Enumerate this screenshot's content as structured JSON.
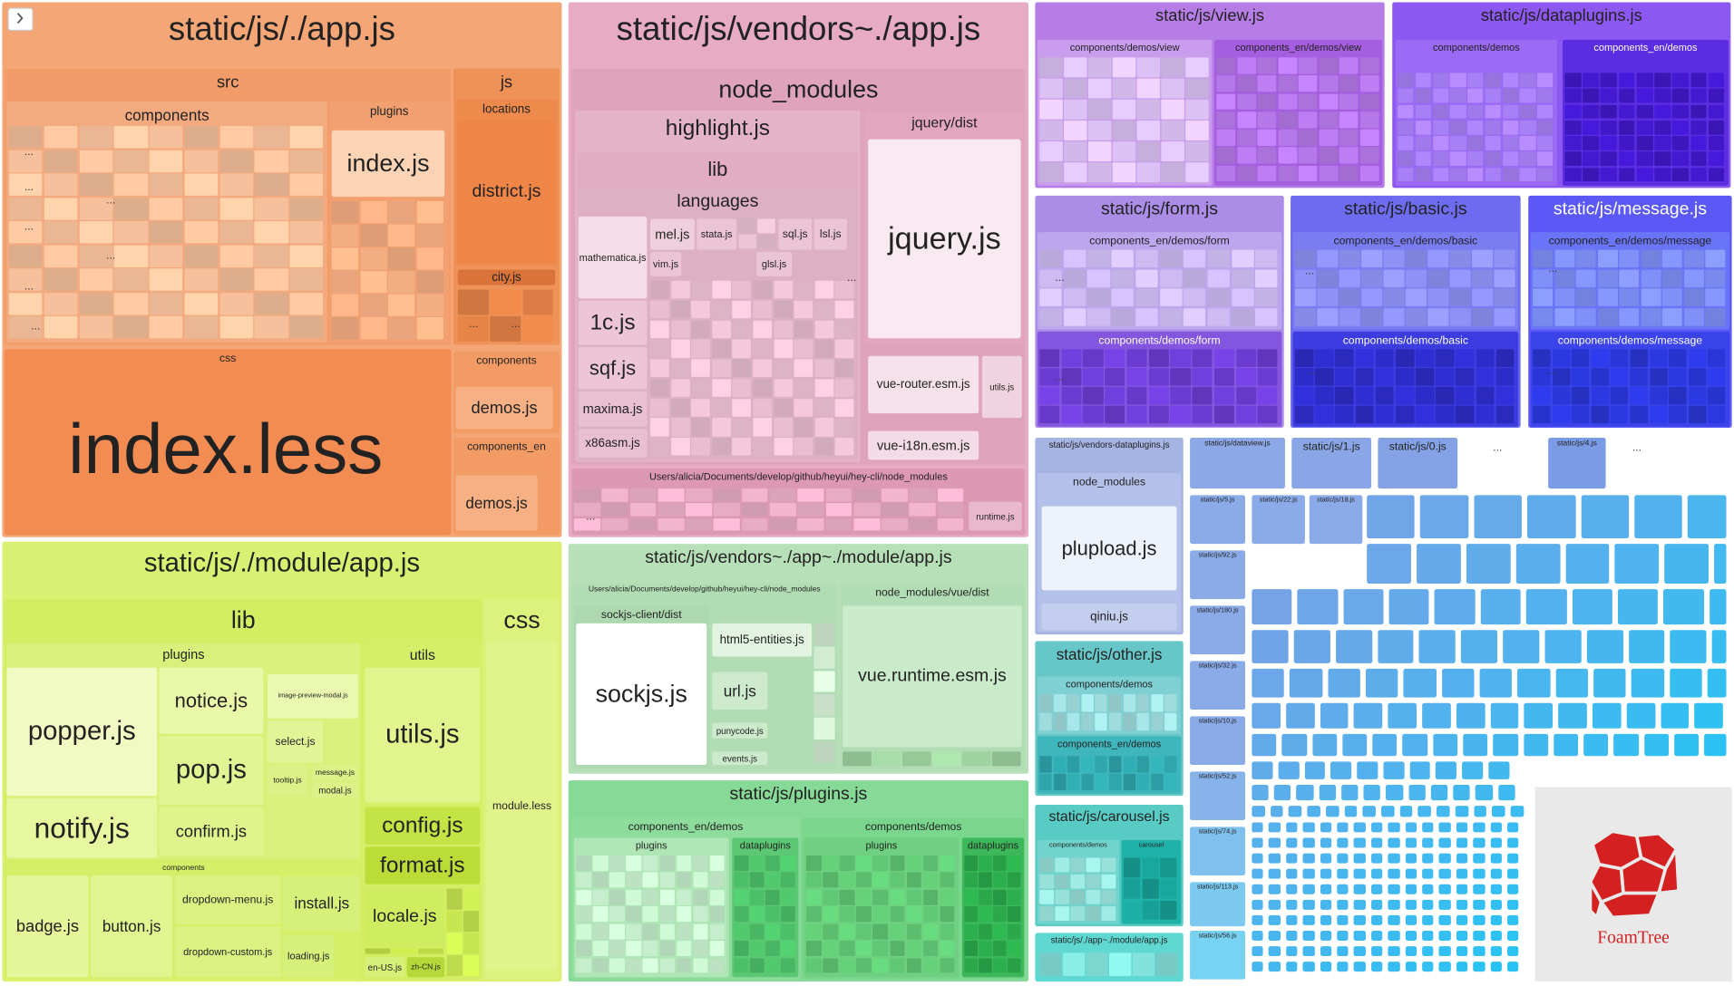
{
  "nodes": [
    {
      "label": "static/js/./app.js"
    },
    {
      "label": "src"
    },
    {
      "label": "components"
    },
    {
      "label": "plugins"
    },
    {
      "label": "index.js"
    },
    {
      "label": "js"
    },
    {
      "label": "locations"
    },
    {
      "label": "district.js"
    },
    {
      "label": "city.js"
    },
    {
      "label": "css"
    },
    {
      "label": "index.less"
    },
    {
      "label": "components"
    },
    {
      "label": "demos.js"
    },
    {
      "label": "components_en"
    },
    {
      "label": "demos.js"
    },
    {
      "label": "static/js/vendors~./app.js"
    },
    {
      "label": "node_modules"
    },
    {
      "label": "highlight.js"
    },
    {
      "label": "lib"
    },
    {
      "label": "languages"
    },
    {
      "label": "mathematica.js"
    },
    {
      "label": "1c.js"
    },
    {
      "label": "sqf.js"
    },
    {
      "label": "maxima.js"
    },
    {
      "label": "x86asm.js"
    },
    {
      "label": "mel.js"
    },
    {
      "label": "stata.js"
    },
    {
      "label": "vim.js"
    },
    {
      "label": "sql.js"
    },
    {
      "label": "lsl.js"
    },
    {
      "label": "glsl.js"
    },
    {
      "label": "jquery/dist"
    },
    {
      "label": "jquery.js"
    },
    {
      "label": "vue-router.esm.js"
    },
    {
      "label": "utils.js"
    },
    {
      "label": "vue-i18n.esm.js"
    },
    {
      "label": "Users/alicia/Documents/develop/github/heyui/hey-cli/node_modules"
    },
    {
      "label": "runtime.js"
    },
    {
      "label": "static/js/./module/app.js"
    },
    {
      "label": "lib"
    },
    {
      "label": "plugins"
    },
    {
      "label": "popper.js"
    },
    {
      "label": "notify.js"
    },
    {
      "label": "notice.js"
    },
    {
      "label": "pop.js"
    },
    {
      "label": "confirm.js"
    },
    {
      "label": "image-preview-modal.js"
    },
    {
      "label": "select.js"
    },
    {
      "label": "tooltip.js"
    },
    {
      "label": "message.js"
    },
    {
      "label": "modal.js"
    },
    {
      "label": "utils"
    },
    {
      "label": "utils.js"
    },
    {
      "label": "config.js"
    },
    {
      "label": "format.js"
    },
    {
      "label": "components"
    },
    {
      "label": "badge.js"
    },
    {
      "label": "button.js"
    },
    {
      "label": "dropdown-menu.js"
    },
    {
      "label": "dropdown-custom.js"
    },
    {
      "label": "install.js"
    },
    {
      "label": "loading.js"
    },
    {
      "label": "locale.js"
    },
    {
      "label": "en-US.js"
    },
    {
      "label": "zh-CN.js"
    },
    {
      "label": "css"
    },
    {
      "label": "module.less"
    },
    {
      "label": "static/js/vendors~./app~./module/app.js"
    },
    {
      "label": "Users/alicia/Documents/develop/github/heyui/hey-cli/node_modules"
    },
    {
      "label": "sockjs-client/dist"
    },
    {
      "label": "sockjs.js"
    },
    {
      "label": "html5-entities.js"
    },
    {
      "label": "url.js"
    },
    {
      "label": "punycode.js"
    },
    {
      "label": "events.js"
    },
    {
      "label": "node_modules/vue/dist"
    },
    {
      "label": "vue.runtime.esm.js"
    },
    {
      "label": "static/js/plugins.js"
    },
    {
      "label": "components_en/demos"
    },
    {
      "label": "plugins"
    },
    {
      "label": "dataplugins"
    },
    {
      "label": "components/demos"
    },
    {
      "label": "plugins"
    },
    {
      "label": "dataplugins"
    },
    {
      "label": "static/js/view.js"
    },
    {
      "label": "components/demos/view"
    },
    {
      "label": "components_en/demos/view"
    },
    {
      "label": "static/js/dataplugins.js"
    },
    {
      "label": "components/demos"
    },
    {
      "label": "components_en/demos"
    },
    {
      "label": "static/js/form.js"
    },
    {
      "label": "components_en/demos/form"
    },
    {
      "label": "components/demos/form"
    },
    {
      "label": "static/js/basic.js"
    },
    {
      "label": "components_en/demos/basic"
    },
    {
      "label": "components/demos/basic"
    },
    {
      "label": "static/js/message.js"
    },
    {
      "label": "components_en/demos/message"
    },
    {
      "label": "components/demos/message"
    },
    {
      "label": "static/js/vendors-dataplugins.js"
    },
    {
      "label": "node_modules"
    },
    {
      "label": "plupload.js"
    },
    {
      "label": "qiniu.js"
    },
    {
      "label": "static/js/other.js"
    },
    {
      "label": "components/demos"
    },
    {
      "label": "components_en/demos"
    },
    {
      "label": "static/js/carousel.js"
    },
    {
      "label": "components/demos"
    },
    {
      "label": "carousel"
    },
    {
      "label": "static/js/./app~./module/app.js"
    },
    {
      "label": "static/js/dataview.js"
    },
    {
      "label": "static/js/1.js"
    },
    {
      "label": "static/js/0.js"
    },
    {
      "label": "static/js/4.js"
    },
    {
      "label": "static/js/5.js"
    },
    {
      "label": "static/js/92.js"
    },
    {
      "label": "static/js/180.js"
    },
    {
      "label": "static/js/32.js"
    },
    {
      "label": "static/js/10.js"
    },
    {
      "label": "static/js/52.js"
    },
    {
      "label": "static/js/74.js"
    },
    {
      "label": "static/js/113.js"
    },
    {
      "label": "static/js/56.js"
    },
    {
      "label": "static/js/22.js"
    },
    {
      "label": "static/js/18.js"
    }
  ],
  "ellipsis": "...",
  "logo": "FoamTree"
}
